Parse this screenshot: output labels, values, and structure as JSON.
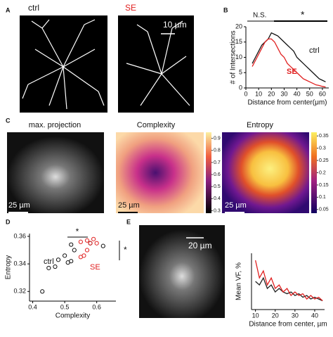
{
  "figure": {
    "panels": [
      "A",
      "B",
      "C",
      "D",
      "E"
    ],
    "a_labels": [
      "ctrl",
      "SE"
    ],
    "a_scale": "10 µm",
    "c_titles": [
      "max. projection",
      "Complexity",
      "Entropy"
    ],
    "c_scales": [
      "25 µm",
      "25 µm",
      "25 µm"
    ],
    "colorbars": [
      {
        "lim": [
          0.28,
          0.95
        ],
        "ticks": [
          0.3,
          0.4,
          0.5,
          0.6,
          0.7,
          0.8,
          0.9
        ]
      },
      {
        "lim": [
          0.035,
          0.365
        ],
        "ticks": [
          0.05,
          0.1,
          0.15,
          0.2,
          0.25,
          0.3,
          0.35
        ]
      }
    ],
    "e_scale": "20 µm"
  },
  "chart_data": [
    {
      "type": "line",
      "xlabel": "Distance from center(μm)",
      "ylabel": "# of Intersections",
      "x": [
        5,
        7.5,
        10,
        12.5,
        15,
        17.5,
        20,
        22.5,
        25,
        27.5,
        30,
        32.5,
        35,
        37.5,
        40,
        42.5,
        45,
        47.5,
        50,
        52.5,
        55,
        57.5,
        60,
        62.5
      ],
      "series": [
        {
          "name": "ctrl",
          "color": "#111111",
          "values": [
            8,
            10,
            12,
            14,
            15,
            16,
            18,
            17.5,
            17,
            16,
            15,
            14,
            13,
            12,
            10,
            9,
            8,
            7,
            6,
            5,
            4,
            3,
            2.5,
            2
          ]
        },
        {
          "name": "SE",
          "color": "#e02020",
          "values": [
            7,
            9,
            11,
            13,
            15,
            16,
            16,
            15,
            13,
            11,
            10,
            8,
            7,
            6,
            5,
            4,
            3,
            2.5,
            2,
            1.5,
            1,
            0.8,
            0.5,
            0.3
          ]
        }
      ],
      "annotations": [
        "N.S.",
        "*"
      ],
      "xlim": [
        0,
        65
      ],
      "ylim": [
        0,
        20
      ],
      "xticks": [
        0,
        10,
        20,
        30,
        40,
        50,
        60
      ],
      "yticks": [
        0,
        5,
        10,
        15,
        20
      ]
    },
    {
      "type": "scatter",
      "xlabel": "Complexity",
      "ylabel": "Entropy",
      "series": [
        {
          "name": "ctrl",
          "color": "#111111",
          "x": [
            0.43,
            0.45,
            0.47,
            0.48,
            0.5,
            0.51,
            0.52,
            0.53,
            0.52,
            0.58,
            0.62
          ],
          "values": [
            0.32,
            0.337,
            0.338,
            0.343,
            0.346,
            0.341,
            0.342,
            0.35,
            0.354,
            0.355,
            0.353
          ]
        },
        {
          "name": "SE",
          "color": "#e02020",
          "x": [
            0.55,
            0.56,
            0.57,
            0.58,
            0.6,
            0.57,
            0.59,
            0.55
          ],
          "values": [
            0.345,
            0.346,
            0.35,
            0.355,
            0.355,
            0.357,
            0.358,
            0.356
          ]
        }
      ],
      "annotations": [
        "*",
        "*"
      ],
      "xlim": [
        0.39,
        0.66
      ],
      "ylim": [
        0.313,
        0.362
      ],
      "xticks": [
        0.4,
        0.5,
        0.6
      ],
      "yticks": [
        0.32,
        0.34,
        0.36
      ]
    },
    {
      "type": "line",
      "xlabel": "Distance from center, µm",
      "ylabel": "Mean VF, %",
      "x": [
        10,
        12,
        14,
        16,
        18,
        20,
        22,
        24,
        26,
        28,
        30,
        32,
        34,
        36,
        38,
        40,
        42,
        44
      ],
      "series": [
        {
          "color": "#222222",
          "values": [
            8,
            7,
            9,
            6,
            7,
            5,
            6,
            5,
            4.5,
            5,
            4,
            4.5,
            3.5,
            4,
            3,
            3.5,
            3,
            2.5
          ]
        },
        {
          "color": "#e02020",
          "values": [
            14,
            9,
            11,
            7,
            9,
            6,
            7,
            5,
            6,
            4,
            5,
            4,
            4.5,
            3,
            4,
            3,
            3.5,
            2.5
          ]
        }
      ],
      "xlim": [
        8,
        45
      ],
      "ylim": [
        0,
        16
      ],
      "xticks": [
        10,
        20,
        30,
        40
      ]
    }
  ]
}
